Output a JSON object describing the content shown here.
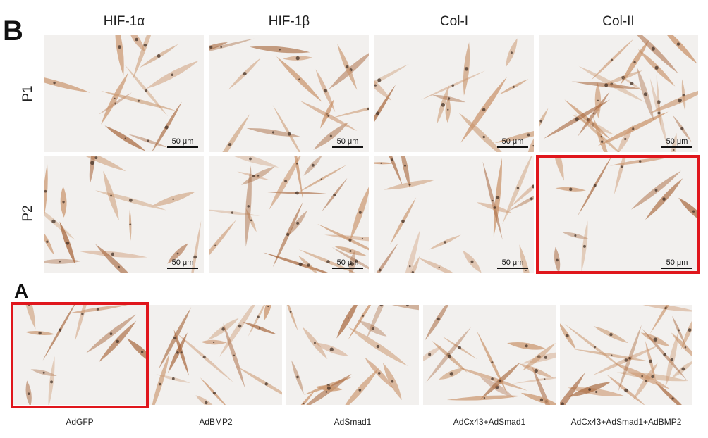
{
  "panel_b": {
    "letter": "B",
    "columns": [
      "HIF-1α",
      "HIF-1β",
      "Col-I",
      "Col-II"
    ],
    "rows": [
      "P1",
      "P2"
    ],
    "scale_bar_label": "50 μm",
    "highlighted_tile": "P2 / Col-II"
  },
  "panel_a": {
    "letter": "A",
    "captions": [
      "AdGFP",
      "AdBMP2",
      "AdSmad1",
      "AdCx43+AdSmad1",
      "AdCx43+AdSmad1+AdBMP2"
    ],
    "highlighted_tile": "AdGFP"
  },
  "colors": {
    "background": "#f2f0ee",
    "cell_stain": "#c9936a",
    "cell_stain_dark": "#a8683e",
    "highlight": "#e0161c"
  }
}
